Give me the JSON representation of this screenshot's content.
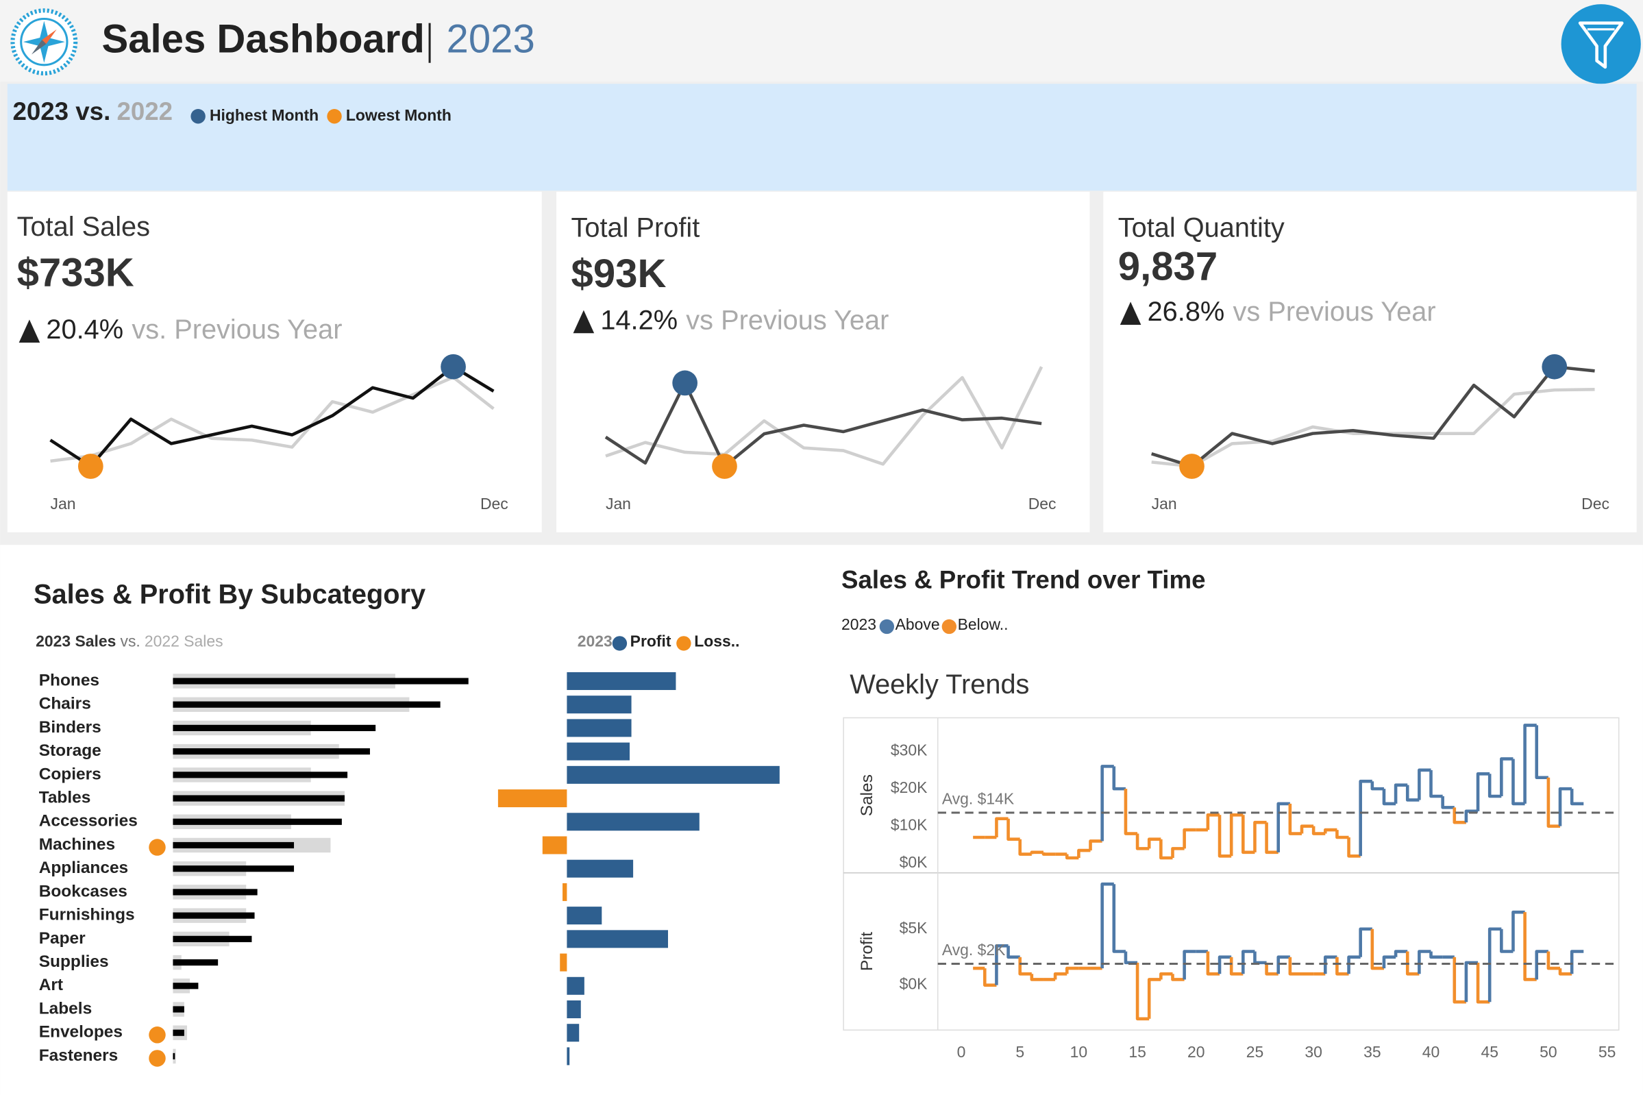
{
  "header": {
    "title": "Sales Dashboard",
    "year": "2023"
  },
  "banner": {
    "current": "2023 vs.",
    "previous": "2022",
    "legend": [
      {
        "name": "Highest Month",
        "color": "#35628f"
      },
      {
        "name": "Lowest Month",
        "color": "#f28e1c"
      }
    ]
  },
  "chart_data": [
    {
      "type": "line",
      "title": "Total Sales",
      "kpi": "$733K",
      "change": "20.4%",
      "change_text": "vs. Previous Year",
      "categories": [
        "Jan",
        null,
        null,
        null,
        null,
        null,
        null,
        null,
        null,
        null,
        null,
        "Dec"
      ],
      "series": [
        {
          "color": "#111111",
          "values": [
            44,
            29,
            56,
            42,
            47,
            52,
            47,
            58,
            74,
            68,
            86,
            72
          ]
        },
        {
          "color": "#cfcfcf",
          "values": [
            32,
            35,
            42,
            56,
            45,
            44,
            40,
            66,
            60,
            70,
            80,
            62
          ]
        }
      ]
    },
    {
      "type": "line",
      "title": "Total Profit",
      "kpi": "$93K",
      "change": "14.2%",
      "change_text": "vs Previous Year",
      "categories": [
        "Jan",
        null,
        null,
        null,
        null,
        null,
        null,
        null,
        null,
        null,
        null,
        "Dec"
      ],
      "series": [
        {
          "color": "#4a4a4a",
          "values": [
            7.0,
            2.2,
            17.0,
            1.6,
            7.6,
            9.2,
            8.0,
            10.0,
            12.0,
            10.2,
            10.5,
            9.5
          ]
        },
        {
          "color": "#cfcfcf",
          "values": [
            3.5,
            6,
            4.2,
            3.8,
            10,
            5,
            4.5,
            2,
            11,
            18,
            5,
            20
          ]
        }
      ]
    },
    {
      "type": "line",
      "title": "Total Quantity",
      "kpi": "9,837",
      "change": "26.8%",
      "change_text": "vs Previous Year",
      "categories": [
        "Jan",
        null,
        null,
        null,
        null,
        null,
        null,
        null,
        null,
        null,
        null,
        "Dec"
      ],
      "series": [
        {
          "color": "#4a4a4a",
          "values": [
            585,
            480,
            755,
            670,
            755,
            780,
            740,
            715,
            1160,
            895,
            1315,
            1280
          ]
        },
        {
          "color": "#cfcfcf",
          "values": [
            515,
            480,
            670,
            690,
            810,
            755,
            755,
            755,
            755,
            1085,
            1120,
            1125
          ]
        }
      ]
    },
    {
      "type": "hbar",
      "title": "Sales & Profit By Subcategory",
      "legend_joiner": "vs.",
      "categories": [
        "Phones",
        "Chairs",
        "Binders",
        "Storage",
        "Copiers",
        "Tables",
        "Accessories",
        "Machines",
        "Appliances",
        "Bookcases",
        "Furnishings",
        "Paper",
        "Supplies",
        "Art",
        "Labels",
        "Envelopes",
        "Fasteners"
      ],
      "series": [
        {
          "name": "2023 Sales",
          "color": "#000000",
          "values": [
            105,
            95,
            72,
            70,
            62,
            61,
            60,
            43,
            43,
            30,
            29,
            28,
            16,
            9,
            4,
            4,
            0.7
          ]
        },
        {
          "name": "2022 Sales",
          "color": "#d9d9d9",
          "values": [
            79,
            84,
            49,
            59,
            49,
            61,
            42,
            56,
            26,
            26,
            26,
            20,
            3,
            6,
            4,
            5,
            1.0
          ]
        }
      ],
      "profit": {
        "title": "2023",
        "positive": {
          "name": "Profit",
          "color": "#2e5f8f"
        },
        "negative": {
          "name": "Loss..",
          "color": "#f28e1c"
        },
        "values": [
          12.5,
          7.4,
          7.4,
          7.2,
          24.4,
          -7.9,
          15.2,
          -2.8,
          7.6,
          -0.5,
          4.0,
          11.6,
          -0.8,
          2.0,
          1.6,
          1.4,
          0.3
        ]
      }
    },
    {
      "type": "step",
      "title": "Sales & Profit Trend over Time",
      "subtitle": "Weekly Trends",
      "legend": {
        "title": "2023",
        "above": {
          "name": "Above",
          "color": "#4e79a7"
        },
        "below": {
          "name": "Below..",
          "color": "#f28e2b"
        }
      },
      "x": [
        2,
        3,
        4,
        5,
        6,
        7,
        8,
        9,
        10,
        11,
        12,
        13,
        14,
        15,
        16,
        17,
        18,
        19,
        20,
        21,
        22,
        23,
        24,
        25,
        26,
        27,
        28,
        29,
        30,
        31,
        32,
        33,
        34,
        35,
        36,
        37,
        38,
        39,
        40,
        41,
        42,
        43,
        44,
        45,
        46,
        47,
        48,
        49,
        50,
        51,
        52,
        53
      ],
      "xlim": [
        -2,
        56
      ],
      "xticks": [
        0,
        5,
        10,
        15,
        20,
        25,
        30,
        35,
        40,
        45,
        50,
        55
      ],
      "panels": [
        {
          "ylabel": "Sales",
          "ylim": [
            -2.5,
            39
          ],
          "yticks": [
            {
              "value": 0,
              "label": "$0K"
            },
            {
              "value": 10,
              "label": "$10K"
            },
            {
              "value": 20,
              "label": "$20K"
            },
            {
              "value": 30,
              "label": "$30K"
            }
          ],
          "avg": {
            "value": 13.6,
            "label": "Avg. $14K"
          },
          "values": [
            7,
            7,
            12,
            6.5,
            2.5,
            3,
            2.5,
            2.5,
            1.5,
            3.5,
            6,
            26,
            20,
            8,
            4,
            6.5,
            1.5,
            4,
            9,
            9,
            13,
            2,
            13,
            3,
            11,
            3,
            16,
            8,
            10,
            8,
            9,
            7,
            2,
            22,
            20,
            16,
            21,
            17,
            25,
            18,
            15,
            11,
            14,
            24,
            18,
            28,
            16,
            37,
            23,
            10,
            20,
            16
          ]
        },
        {
          "ylabel": "Profit",
          "ylim": [
            -4,
            10
          ],
          "yticks": [
            {
              "value": 0,
              "label": "$0K"
            },
            {
              "value": 5,
              "label": "$5K"
            }
          ],
          "avg": {
            "value": 1.9,
            "label": "Avg. $2K"
          },
          "values": [
            1.5,
            0,
            3.5,
            2.5,
            1,
            0.5,
            0.5,
            1,
            1.5,
            1.5,
            1.5,
            9,
            3,
            2,
            -3,
            0.5,
            1,
            0.5,
            3,
            3,
            1,
            2.5,
            1,
            3,
            2,
            1,
            2.5,
            1,
            1,
            1,
            2.5,
            1,
            2.5,
            5,
            1.5,
            2.5,
            3,
            1,
            3,
            2.5,
            2.5,
            -1.5,
            2,
            -1.5,
            5,
            3,
            6.5,
            0.5,
            3,
            1.5,
            1,
            3
          ]
        }
      ]
    }
  ]
}
